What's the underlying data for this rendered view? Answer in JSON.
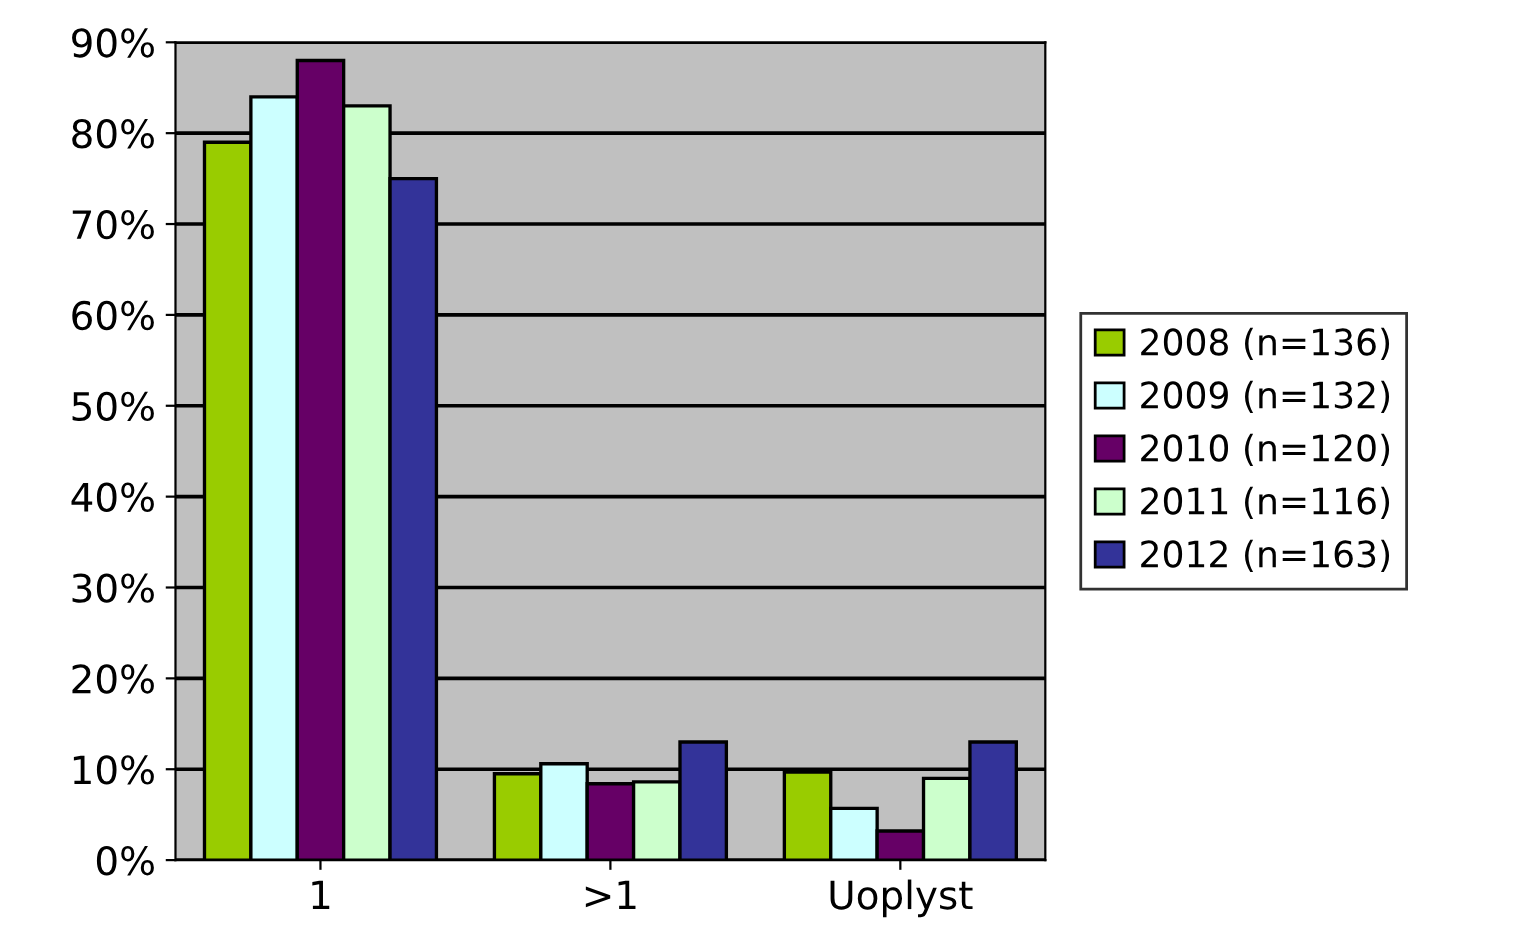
{
  "chart_data": {
    "type": "bar",
    "categories": [
      "1",
      ">1",
      "Uoplyst"
    ],
    "series": [
      {
        "name": "2008 (n=136)",
        "color": "#99cc00",
        "values": [
          79,
          9.5,
          9.7
        ]
      },
      {
        "name": "2009 (n=132)",
        "color": "#ccffff",
        "values": [
          84,
          10.6,
          5.7
        ]
      },
      {
        "name": "2010 (n=120)",
        "color": "#660066",
        "values": [
          88,
          8.4,
          3.2
        ]
      },
      {
        "name": "2011 (n=116)",
        "color": "#ccffcc",
        "values": [
          83,
          8.6,
          9
        ]
      },
      {
        "name": "2012 (n=163)",
        "color": "#333399",
        "values": [
          75,
          13,
          13
        ]
      }
    ],
    "ylim": [
      0,
      90
    ],
    "yticks": [
      {
        "value": 0,
        "label": "0%"
      },
      {
        "value": 10,
        "label": "10%"
      },
      {
        "value": 20,
        "label": "20%"
      },
      {
        "value": 30,
        "label": "30%"
      },
      {
        "value": 40,
        "label": "40%"
      },
      {
        "value": 50,
        "label": "50%"
      },
      {
        "value": 60,
        "label": "60%"
      },
      {
        "value": 70,
        "label": "70%"
      },
      {
        "value": 80,
        "label": "80%"
      },
      {
        "value": 90,
        "label": "90%"
      }
    ],
    "grid": "y",
    "legend": "right"
  }
}
